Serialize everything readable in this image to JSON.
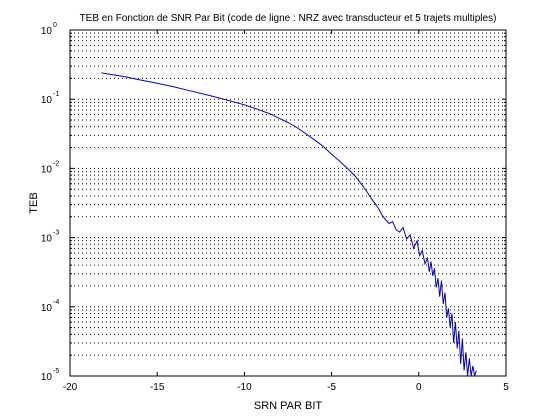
{
  "chart_data": {
    "type": "line",
    "title": "TEB en Fonction de SNR Par Bit (code de ligne : NRZ avec transducteur et 5 trajets multiples)",
    "xlabel": "SRN PAR BIT",
    "ylabel": "TEB",
    "xlim": [
      -20,
      5
    ],
    "ylim": [
      1e-05,
      1
    ],
    "yscale": "log",
    "grid": "dotted, y major and minor lines",
    "legend": "none",
    "x_ticks": [
      -20,
      -15,
      -10,
      -5,
      0,
      5
    ],
    "x_tick_labels": [
      "-20",
      "-15",
      "-10",
      "-5",
      "0",
      "5"
    ],
    "y_ticks": [
      1,
      0.1,
      0.01,
      0.001,
      0.0001,
      1e-05
    ],
    "y_tick_bases": [
      "10",
      "10",
      "10",
      "10",
      "10",
      "10"
    ],
    "y_tick_exponents": [
      "0",
      "-1",
      "-2",
      "-3",
      "-4",
      "-5"
    ],
    "series": [
      {
        "color": "#0000c8",
        "x": [
          -18.2,
          -17,
          -16,
          -15,
          -14,
          -13,
          -12,
          -11,
          -10,
          -9,
          -8.5,
          -8,
          -7.5,
          -7,
          -6.5,
          -6,
          -5.5,
          -5,
          -4.5,
          -4,
          -3.6,
          -3.3,
          -3.0,
          -2.7,
          -2.5,
          -2.3,
          -2.1,
          -1.9,
          -1.7,
          -1.5,
          -1.3,
          -1.1,
          -0.9,
          -0.7,
          -0.5,
          -0.3,
          -0.1,
          0.05,
          0.2,
          0.35,
          0.5,
          0.6,
          0.7,
          0.8,
          0.9,
          1.0,
          1.1,
          1.2,
          1.3,
          1.4,
          1.5,
          1.6,
          1.7,
          1.8,
          1.9,
          2.0,
          2.1,
          2.2,
          2.3,
          2.4,
          2.5,
          2.6,
          2.7,
          2.8,
          2.9,
          3.0,
          3.1,
          3.2,
          3.3
        ],
        "y": [
          0.24,
          0.215,
          0.19,
          0.17,
          0.15,
          0.13,
          0.113,
          0.097,
          0.083,
          0.068,
          0.061,
          0.053,
          0.046,
          0.039,
          0.032,
          0.026,
          0.021,
          0.016,
          0.0125,
          0.0095,
          0.0075,
          0.006,
          0.0047,
          0.0036,
          0.0031,
          0.0026,
          0.0021,
          0.0018,
          0.0016,
          0.0017,
          0.0013,
          0.0012,
          0.0014,
          0.00095,
          0.0011,
          0.0007,
          0.0009,
          0.00055,
          0.00065,
          0.00042,
          0.0005,
          0.00032,
          0.00045,
          0.00028,
          0.00036,
          0.00019,
          0.00026,
          0.00014,
          0.00024,
          0.00011,
          0.00016,
          7e-05,
          9.5e-05,
          5e-05,
          8e-05,
          3e-05,
          6e-05,
          2.5e-05,
          4.5e-05,
          1.5e-05,
          3.5e-05,
          1.2e-05,
          2.2e-05,
          1e-05,
          1.8e-05,
          1e-05,
          1.4e-05,
          1e-05,
          1.2e-05
        ]
      }
    ]
  }
}
